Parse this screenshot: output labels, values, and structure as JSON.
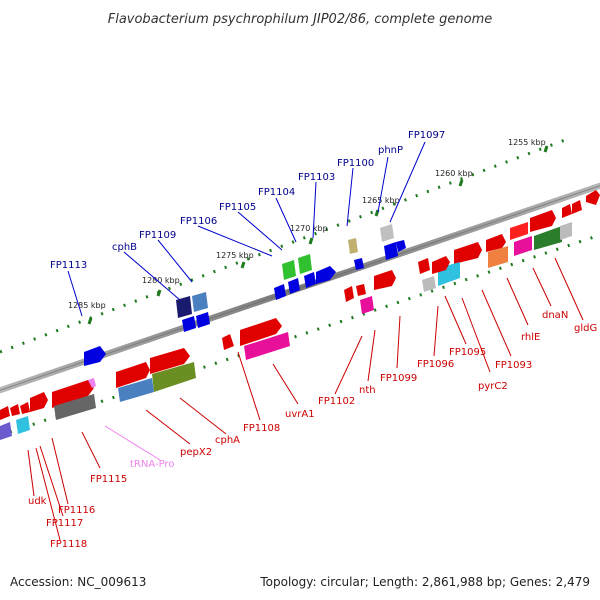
{
  "title": "Flavobacterium psychrophilum JIP02/86, complete genome",
  "footer": {
    "accession": "Accession: NC_009613",
    "summary": "Topology: circular; Length: 2,861,988 bp; Genes: 2,479"
  },
  "colors": {
    "backbone": "#8c8c8c",
    "tick": "#1f7a1f",
    "label_top": "#00008b",
    "label_bottom": "#cc0000",
    "trna_label": "#ee82ee"
  },
  "ticks": [
    "1255 kbp",
    "1260 kbp",
    "1265 kbp",
    "1270 kbp",
    "1275 kbp",
    "1280 kbp",
    "1285 kbp"
  ],
  "labels_top": [
    "FP1097",
    "phnP",
    "FP1100",
    "FP1103",
    "FP1104",
    "FP1105",
    "FP1106",
    "FP1109",
    "cphB",
    "FP1113"
  ],
  "labels_bottom": [
    "gldG",
    "dnaN",
    "rhlE",
    "FP1093",
    "pyrC2",
    "FP1095",
    "FP1096",
    "FP1099",
    "nth",
    "FP1102",
    "uvrA1",
    "FP1108",
    "cphA",
    "pepX2",
    "tRNA-Pro",
    "FP1115",
    "FP1116",
    "FP1117",
    "FP1118",
    "udk"
  ]
}
